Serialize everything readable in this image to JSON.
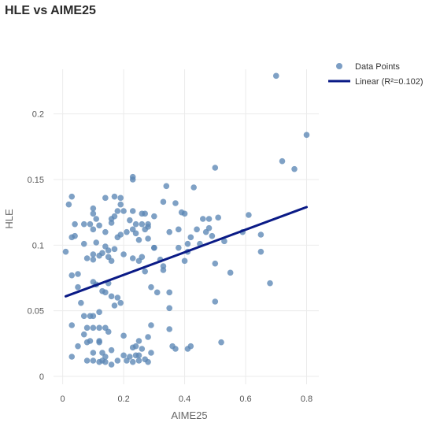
{
  "chart_data": {
    "type": "scatter",
    "title": "HLE vs AIME25",
    "xlabel": "AIME25",
    "ylabel": "HLE",
    "xlim": [
      -0.03,
      0.84
    ],
    "ylim": [
      -0.006,
      0.234
    ],
    "x_ticks": [
      0,
      0.2,
      0.4,
      0.6,
      0.8
    ],
    "x_tick_labels": [
      "0",
      "0.2",
      "0.4",
      "0.6",
      "0.8"
    ],
    "y_ticks": [
      0,
      0.05,
      0.1,
      0.15,
      0.2
    ],
    "y_tick_labels": [
      "0",
      "0.05",
      "0.1",
      "0.15",
      "0.2"
    ],
    "grid": true,
    "legend_position": "top-right",
    "colors": {
      "points": "#5b86b5",
      "line": "#0a1a86",
      "grid": "#ebebeb"
    },
    "series": [
      {
        "name": "Data Points",
        "type": "scatter",
        "points": [
          [
            0.01,
            0.095
          ],
          [
            0.02,
            0.131
          ],
          [
            0.03,
            0.137
          ],
          [
            0.03,
            0.106
          ],
          [
            0.03,
            0.077
          ],
          [
            0.04,
            0.107
          ],
          [
            0.04,
            0.116
          ],
          [
            0.05,
            0.078
          ],
          [
            0.05,
            0.068
          ],
          [
            0.03,
            0.039
          ],
          [
            0.03,
            0.015
          ],
          [
            0.05,
            0.023
          ],
          [
            0.06,
            0.056
          ],
          [
            0.07,
            0.046
          ],
          [
            0.07,
            0.032
          ],
          [
            0.07,
            0.101
          ],
          [
            0.07,
            0.116
          ],
          [
            0.08,
            0.09
          ],
          [
            0.08,
            0.037
          ],
          [
            0.08,
            0.026
          ],
          [
            0.08,
            0.012
          ],
          [
            0.09,
            0.046
          ],
          [
            0.09,
            0.027
          ],
          [
            0.09,
            0.116
          ],
          [
            0.1,
            0.124
          ],
          [
            0.1,
            0.128
          ],
          [
            0.1,
            0.112
          ],
          [
            0.1,
            0.093
          ],
          [
            0.1,
            0.089
          ],
          [
            0.1,
            0.072
          ],
          [
            0.1,
            0.046
          ],
          [
            0.1,
            0.037
          ],
          [
            0.1,
            0.018
          ],
          [
            0.1,
            0.012
          ],
          [
            0.11,
            0.12
          ],
          [
            0.11,
            0.102
          ],
          [
            0.11,
            0.07
          ],
          [
            0.12,
            0.115
          ],
          [
            0.12,
            0.092
          ],
          [
            0.12,
            0.049
          ],
          [
            0.12,
            0.037
          ],
          [
            0.12,
            0.027
          ],
          [
            0.12,
            0.011
          ],
          [
            0.12,
            0.026
          ],
          [
            0.13,
            0.094
          ],
          [
            0.13,
            0.065
          ],
          [
            0.13,
            0.012
          ],
          [
            0.13,
            0.018
          ],
          [
            0.14,
            0.136
          ],
          [
            0.14,
            0.11
          ],
          [
            0.14,
            0.099
          ],
          [
            0.14,
            0.064
          ],
          [
            0.14,
            0.037
          ],
          [
            0.14,
            0.015
          ],
          [
            0.14,
            0.011
          ],
          [
            0.15,
            0.096
          ],
          [
            0.15,
            0.091
          ],
          [
            0.15,
            0.071
          ],
          [
            0.15,
            0.034
          ],
          [
            0.16,
            0.12
          ],
          [
            0.16,
            0.117
          ],
          [
            0.16,
            0.088
          ],
          [
            0.16,
            0.061
          ],
          [
            0.16,
            0.02
          ],
          [
            0.16,
            0.009
          ],
          [
            0.17,
            0.137
          ],
          [
            0.17,
            0.122
          ],
          [
            0.17,
            0.097
          ],
          [
            0.17,
            0.054
          ],
          [
            0.18,
            0.126
          ],
          [
            0.18,
            0.106
          ],
          [
            0.18,
            0.06
          ],
          [
            0.18,
            0.012
          ],
          [
            0.19,
            0.136
          ],
          [
            0.19,
            0.131
          ],
          [
            0.19,
            0.108
          ],
          [
            0.19,
            0.056
          ],
          [
            0.2,
            0.126
          ],
          [
            0.2,
            0.093
          ],
          [
            0.2,
            0.031
          ],
          [
            0.2,
            0.016
          ],
          [
            0.21,
            0.11
          ],
          [
            0.21,
            0.012
          ],
          [
            0.22,
            0.119
          ],
          [
            0.22,
            0.015
          ],
          [
            0.23,
            0.152
          ],
          [
            0.23,
            0.15
          ],
          [
            0.23,
            0.126
          ],
          [
            0.23,
            0.112
          ],
          [
            0.23,
            0.09
          ],
          [
            0.23,
            0.022
          ],
          [
            0.23,
            0.011
          ],
          [
            0.24,
            0.116
          ],
          [
            0.24,
            0.109
          ],
          [
            0.24,
            0.023
          ],
          [
            0.24,
            0.016
          ],
          [
            0.25,
            0.104
          ],
          [
            0.25,
            0.088
          ],
          [
            0.25,
            0.027
          ],
          [
            0.25,
            0.016
          ],
          [
            0.25,
            0.012
          ],
          [
            0.26,
            0.124
          ],
          [
            0.26,
            0.116
          ],
          [
            0.26,
            0.091
          ],
          [
            0.26,
            0.021
          ],
          [
            0.27,
            0.124
          ],
          [
            0.27,
            0.112
          ],
          [
            0.27,
            0.08
          ],
          [
            0.27,
            0.013
          ],
          [
            0.28,
            0.116
          ],
          [
            0.28,
            0.114
          ],
          [
            0.28,
            0.105
          ],
          [
            0.28,
            0.03
          ],
          [
            0.28,
            0.011
          ],
          [
            0.29,
            0.068
          ],
          [
            0.29,
            0.039
          ],
          [
            0.29,
            0.018
          ],
          [
            0.3,
            0.098
          ],
          [
            0.3,
            0.098
          ],
          [
            0.3,
            0.122
          ],
          [
            0.31,
            0.064
          ],
          [
            0.32,
            0.089
          ],
          [
            0.33,
            0.133
          ],
          [
            0.33,
            0.084
          ],
          [
            0.33,
            0.081
          ],
          [
            0.34,
            0.145
          ],
          [
            0.35,
            0.11
          ],
          [
            0.35,
            0.064
          ],
          [
            0.35,
            0.052
          ],
          [
            0.35,
            0.036
          ],
          [
            0.36,
            0.023
          ],
          [
            0.37,
            0.021
          ],
          [
            0.37,
            0.132
          ],
          [
            0.38,
            0.112
          ],
          [
            0.38,
            0.098
          ],
          [
            0.39,
            0.125
          ],
          [
            0.4,
            0.124
          ],
          [
            0.4,
            0.088
          ],
          [
            0.41,
            0.101
          ],
          [
            0.41,
            0.095
          ],
          [
            0.41,
            0.021
          ],
          [
            0.42,
            0.106
          ],
          [
            0.42,
            0.023
          ],
          [
            0.43,
            0.144
          ],
          [
            0.44,
            0.112
          ],
          [
            0.45,
            0.101
          ],
          [
            0.46,
            0.12
          ],
          [
            0.47,
            0.11
          ],
          [
            0.48,
            0.12
          ],
          [
            0.48,
            0.113
          ],
          [
            0.49,
            0.107
          ],
          [
            0.5,
            0.159
          ],
          [
            0.5,
            0.086
          ],
          [
            0.5,
            0.057
          ],
          [
            0.51,
            0.121
          ],
          [
            0.52,
            0.026
          ],
          [
            0.53,
            0.103
          ],
          [
            0.55,
            0.079
          ],
          [
            0.59,
            0.11
          ],
          [
            0.61,
            0.123
          ],
          [
            0.65,
            0.095
          ],
          [
            0.65,
            0.108
          ],
          [
            0.68,
            0.071
          ],
          [
            0.7,
            0.229
          ],
          [
            0.72,
            0.164
          ],
          [
            0.76,
            0.158
          ],
          [
            0.8,
            0.184
          ]
        ]
      },
      {
        "name": "Linear (R²=0.102)",
        "type": "line",
        "x": [
          0.01,
          0.8
        ],
        "y": [
          0.061,
          0.129
        ]
      }
    ]
  }
}
